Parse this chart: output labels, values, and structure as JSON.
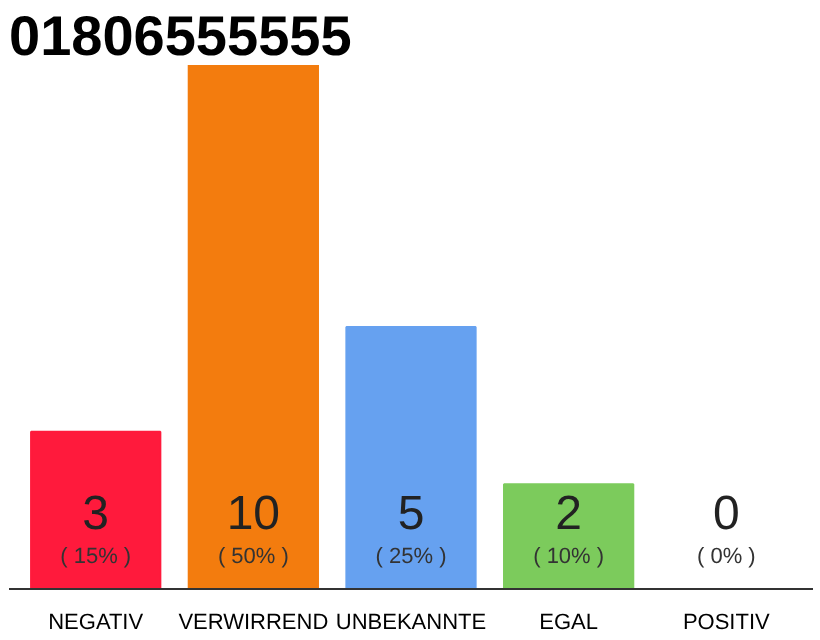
{
  "chart_data": {
    "type": "bar",
    "title": "01806555555",
    "categories": [
      "NEGATIV",
      "VERWIRREND",
      "UNBEKANNTE",
      "EGAL",
      "POSITIV"
    ],
    "values": [
      3,
      10,
      5,
      2,
      0
    ],
    "colors": [
      "#ff1a3c",
      "#f37c0e",
      "#66a1f0",
      "#7ccb5c",
      "#d9d9d9"
    ],
    "ylim": [
      0,
      10
    ],
    "tick_labels": "x",
    "grid": false,
    "data_labels": true,
    "annotations": [
      "( 15% )",
      "( 50% )",
      "( 25% )",
      "( 10% )",
      "( 0% )"
    ]
  }
}
